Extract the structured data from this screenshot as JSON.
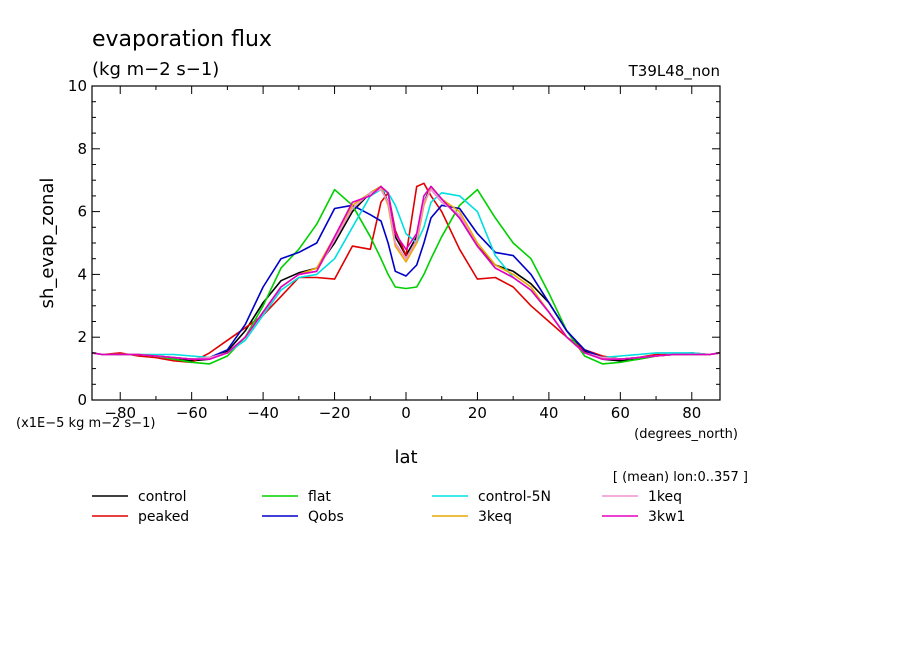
{
  "chart_data": {
    "type": "line",
    "title": "evaporation flux",
    "units": "(kg m−2 s−1)",
    "run_label": "T39L48_non",
    "ylabel": "sh_evap_zonal",
    "xlabel": "lat",
    "x_units": "(degrees_north)",
    "scale_note": "(x1E−5 kg m−2 s−1)",
    "mean_note": "[ (mean) lon:0..357 ]",
    "xlim": [
      -87.9,
      87.9
    ],
    "ylim": [
      0,
      10
    ],
    "xticks": [
      -80,
      -60,
      -40,
      -20,
      0,
      20,
      40,
      60,
      80
    ],
    "xtick_labels": [
      "−80",
      "−60",
      "−40",
      "−20",
      "0",
      "20",
      "40",
      "60",
      "80"
    ],
    "yticks": [
      0,
      2,
      4,
      6,
      8,
      10
    ],
    "ytick_labels": [
      "0",
      "2",
      "4",
      "6",
      "8",
      "10"
    ],
    "grid": false,
    "x": [
      -87.9,
      -85,
      -80,
      -75,
      -70,
      -65,
      -60,
      -55,
      -50,
      -45,
      -40,
      -35,
      -30,
      -25,
      -20,
      -15,
      -10,
      -7,
      -5,
      -3,
      0,
      3,
      5,
      7,
      10,
      15,
      20,
      25,
      30,
      35,
      40,
      45,
      50,
      55,
      60,
      65,
      70,
      75,
      80,
      85,
      87.9
    ],
    "series": [
      {
        "name": "control",
        "color": "#000000",
        "values": [
          1.5,
          1.45,
          1.45,
          1.45,
          1.4,
          1.35,
          1.25,
          1.3,
          1.55,
          2.2,
          3.1,
          3.8,
          4.05,
          4.2,
          5.0,
          6.0,
          6.6,
          6.8,
          6.3,
          5.2,
          4.6,
          5.2,
          6.3,
          6.8,
          6.4,
          5.8,
          4.9,
          4.3,
          4.1,
          3.7,
          3.1,
          2.2,
          1.55,
          1.3,
          1.25,
          1.3,
          1.4,
          1.45,
          1.45,
          1.45,
          1.5
        ]
      },
      {
        "name": "peaked",
        "color": "#e00000",
        "values": [
          1.5,
          1.45,
          1.5,
          1.4,
          1.35,
          1.25,
          1.2,
          1.5,
          1.9,
          2.3,
          2.7,
          3.3,
          3.9,
          3.9,
          3.85,
          4.9,
          4.8,
          6.3,
          6.6,
          5.4,
          4.6,
          6.8,
          6.9,
          6.5,
          6.0,
          4.8,
          3.85,
          3.9,
          3.6,
          3.0,
          2.5,
          2.0,
          1.6,
          1.4,
          1.3,
          1.35,
          1.45,
          1.45,
          1.5,
          1.45,
          1.5
        ]
      },
      {
        "name": "flat",
        "color": "#00d000",
        "values": [
          1.5,
          1.45,
          1.45,
          1.45,
          1.4,
          1.3,
          1.2,
          1.15,
          1.4,
          2.0,
          3.0,
          4.2,
          4.8,
          5.6,
          6.7,
          6.2,
          5.2,
          4.5,
          4.0,
          3.6,
          3.55,
          3.6,
          4.0,
          4.5,
          5.2,
          6.2,
          6.7,
          5.8,
          5.0,
          4.5,
          3.4,
          2.2,
          1.4,
          1.15,
          1.2,
          1.3,
          1.4,
          1.45,
          1.45,
          1.45,
          1.5
        ]
      },
      {
        "name": "Qobs",
        "color": "#0000c8",
        "values": [
          1.5,
          1.45,
          1.45,
          1.45,
          1.4,
          1.35,
          1.3,
          1.35,
          1.6,
          2.4,
          3.6,
          4.5,
          4.7,
          5.0,
          6.1,
          6.2,
          5.9,
          5.7,
          5.0,
          4.1,
          3.95,
          4.3,
          5.0,
          5.8,
          6.2,
          6.1,
          5.3,
          4.7,
          4.6,
          4.0,
          3.1,
          2.2,
          1.6,
          1.35,
          1.3,
          1.35,
          1.4,
          1.45,
          1.45,
          1.45,
          1.5
        ]
      },
      {
        "name": "control-5N",
        "color": "#00e0e0",
        "values": [
          1.5,
          1.45,
          1.45,
          1.45,
          1.45,
          1.45,
          1.4,
          1.35,
          1.5,
          1.9,
          2.7,
          3.5,
          3.9,
          4.0,
          4.5,
          5.5,
          6.5,
          6.7,
          6.6,
          6.2,
          5.3,
          5.0,
          5.5,
          6.3,
          6.6,
          6.5,
          6.0,
          4.6,
          3.9,
          3.5,
          2.8,
          2.0,
          1.5,
          1.35,
          1.4,
          1.45,
          1.5,
          1.5,
          1.5,
          1.45,
          1.5
        ]
      },
      {
        "name": "3keq",
        "color": "#e8a800",
        "values": [
          1.5,
          1.45,
          1.45,
          1.45,
          1.4,
          1.35,
          1.3,
          1.35,
          1.5,
          2.0,
          2.8,
          3.6,
          4.0,
          4.2,
          5.2,
          6.2,
          6.6,
          6.8,
          6.2,
          4.9,
          4.4,
          5.0,
          6.2,
          6.8,
          6.4,
          6.0,
          5.0,
          4.3,
          4.0,
          3.6,
          2.8,
          2.0,
          1.5,
          1.35,
          1.3,
          1.35,
          1.4,
          1.45,
          1.45,
          1.45,
          1.5
        ]
      },
      {
        "name": "1keq",
        "color": "#f090d0",
        "values": [
          1.5,
          1.45,
          1.45,
          1.45,
          1.4,
          1.35,
          1.3,
          1.35,
          1.5,
          2.0,
          2.8,
          3.6,
          4.0,
          4.1,
          5.1,
          6.1,
          6.6,
          6.7,
          6.3,
          5.0,
          4.5,
          5.1,
          6.3,
          6.7,
          6.3,
          5.9,
          4.9,
          4.2,
          3.9,
          3.5,
          2.8,
          2.0,
          1.5,
          1.35,
          1.3,
          1.35,
          1.4,
          1.45,
          1.45,
          1.45,
          1.5
        ]
      },
      {
        "name": "3kw1",
        "color": "#e000c0",
        "values": [
          1.5,
          1.45,
          1.45,
          1.45,
          1.4,
          1.35,
          1.3,
          1.3,
          1.5,
          2.0,
          2.8,
          3.6,
          4.0,
          4.1,
          5.2,
          6.3,
          6.5,
          6.8,
          6.6,
          5.3,
          4.8,
          5.3,
          6.5,
          6.8,
          6.4,
          5.8,
          4.9,
          4.2,
          3.9,
          3.5,
          2.8,
          2.0,
          1.5,
          1.3,
          1.3,
          1.35,
          1.4,
          1.45,
          1.45,
          1.45,
          1.5
        ]
      }
    ]
  }
}
